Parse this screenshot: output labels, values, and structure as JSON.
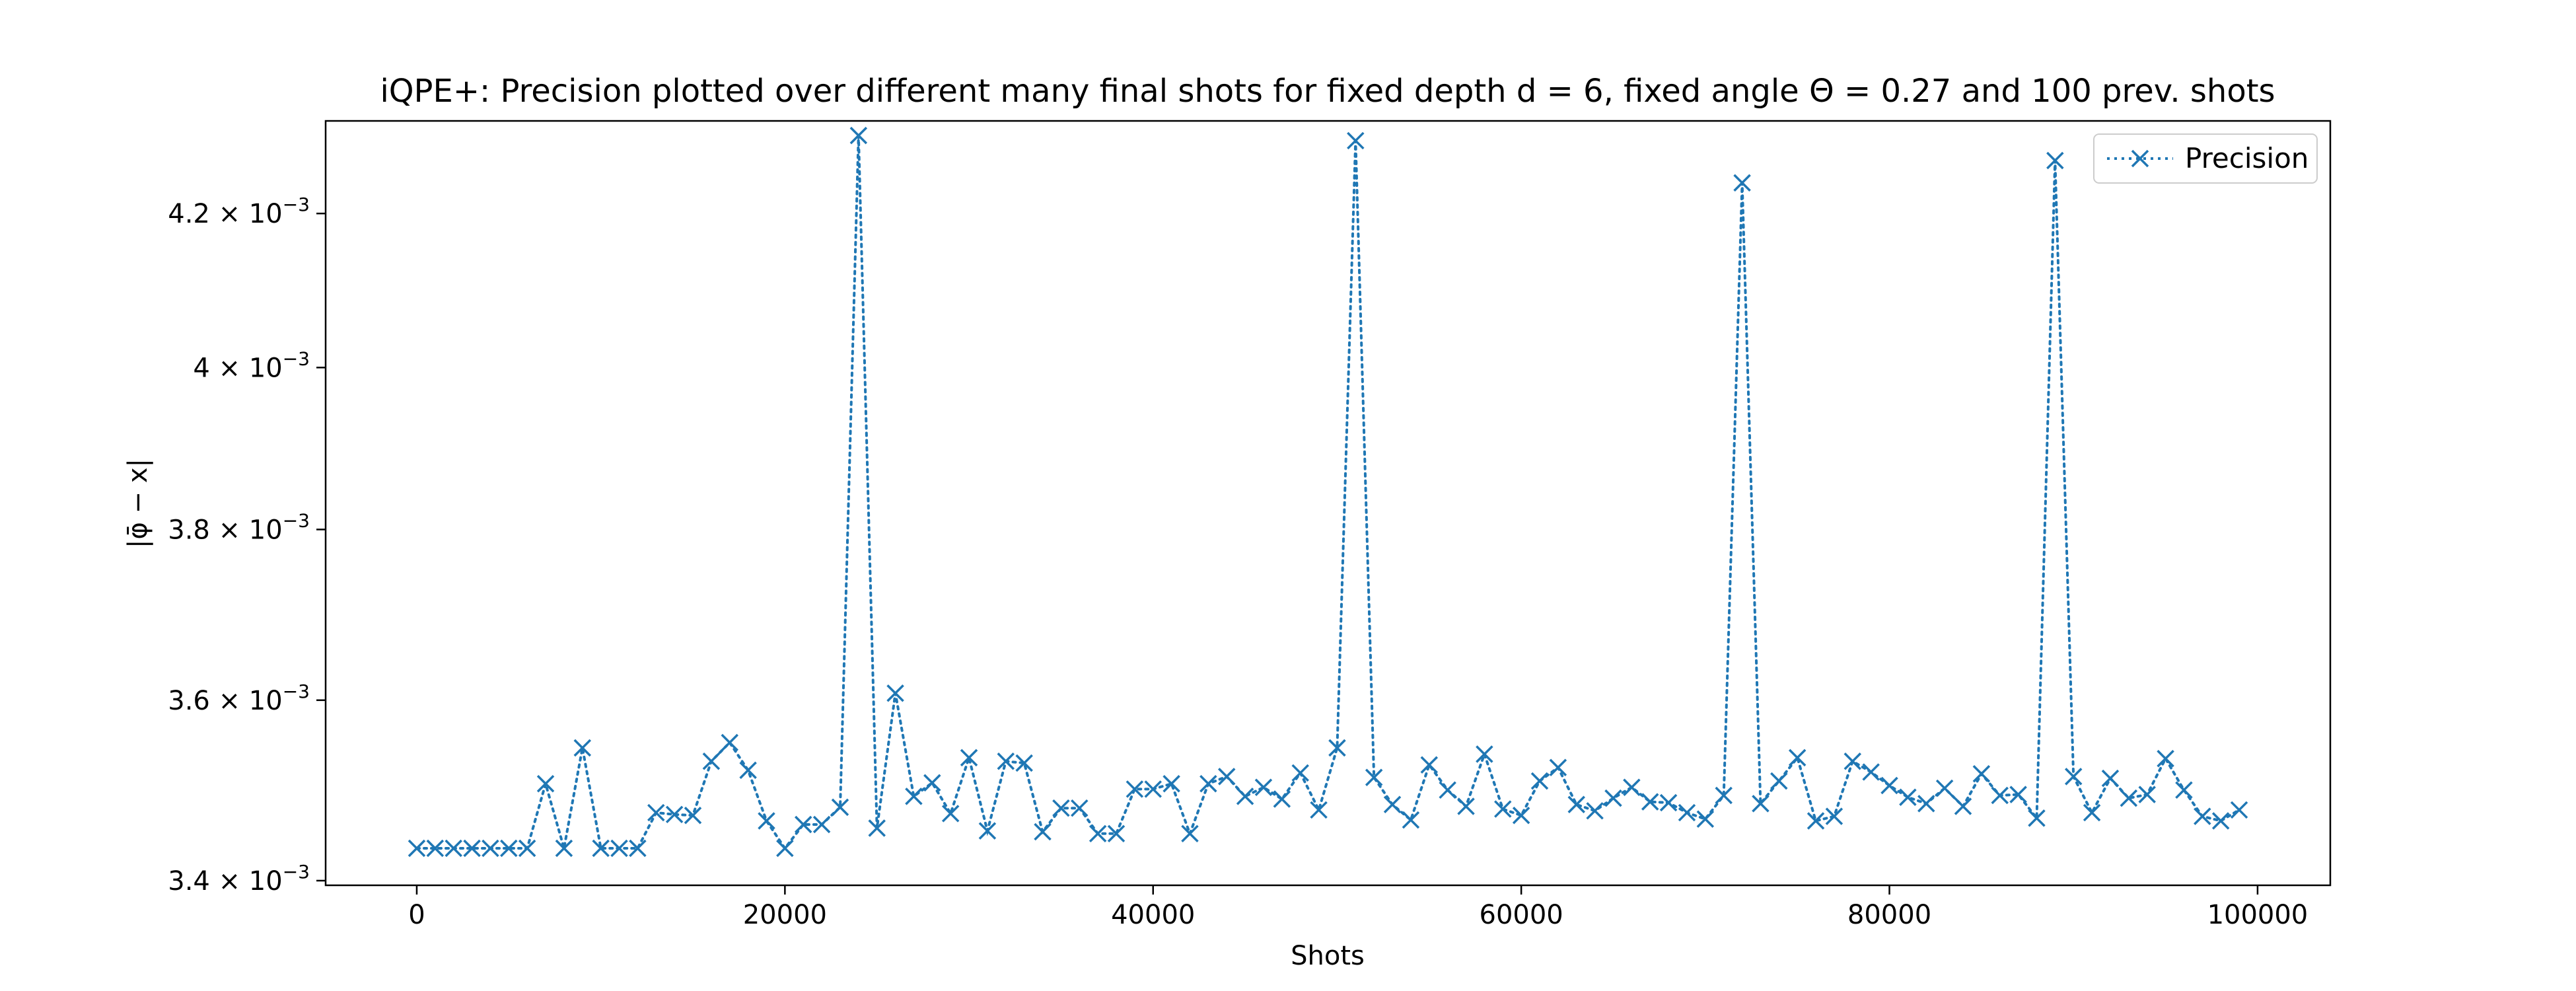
{
  "chart_data": {
    "type": "line",
    "title": "iQPE+: Precision plotted over different many final shots for fixed depth d = 6, fixed angle Θ = 0.27 and 100 prev. shots",
    "xlabel": "Shots",
    "ylabel": "|φ̄ − x|",
    "xlim": [
      -4950,
      103950
    ],
    "ylim": [
      0.003395,
      0.004325
    ],
    "x_ticks": [
      {
        "value": 0,
        "label": "0"
      },
      {
        "value": 20000,
        "label": "20000"
      },
      {
        "value": 40000,
        "label": "40000"
      },
      {
        "value": 60000,
        "label": "60000"
      },
      {
        "value": 80000,
        "label": "80000"
      },
      {
        "value": 100000,
        "label": "100000"
      }
    ],
    "y_ticks": [
      {
        "value": 0.0034,
        "mantissa": "3.4",
        "exp": "−3"
      },
      {
        "value": 0.0036,
        "mantissa": "3.6",
        "exp": "−3"
      },
      {
        "value": 0.0038,
        "mantissa": "3.8",
        "exp": "−3"
      },
      {
        "value": 0.004,
        "mantissa": "4",
        "exp": "−3"
      },
      {
        "value": 0.0042,
        "mantissa": "4.2",
        "exp": "−3"
      }
    ],
    "y_scale": "log",
    "grid": false,
    "legend_position": "top-right",
    "series": [
      {
        "name": "Precision",
        "color": "#1f77b4",
        "line_style": "dotted",
        "marker": "x",
        "x": [
          0,
          1000,
          2000,
          3000,
          4000,
          5000,
          6000,
          7000,
          8000,
          9000,
          10000,
          11000,
          12000,
          13000,
          14000,
          15000,
          16000,
          17000,
          18000,
          19000,
          20000,
          21000,
          22000,
          23000,
          24000,
          25000,
          26000,
          27000,
          28000,
          29000,
          30000,
          31000,
          32000,
          33000,
          34000,
          35000,
          36000,
          37000,
          38000,
          39000,
          40000,
          41000,
          42000,
          43000,
          44000,
          45000,
          46000,
          47000,
          48000,
          49000,
          50000,
          51000,
          52000,
          53000,
          54000,
          55000,
          56000,
          57000,
          58000,
          59000,
          60000,
          61000,
          62000,
          63000,
          64000,
          65000,
          66000,
          67000,
          68000,
          69000,
          70000,
          71000,
          72000,
          73000,
          74000,
          75000,
          76000,
          77000,
          78000,
          79000,
          80000,
          81000,
          82000,
          83000,
          84000,
          85000,
          86000,
          87000,
          88000,
          89000,
          90000,
          91000,
          92000,
          93000,
          94000,
          95000,
          96000,
          97000,
          98000,
          99000
        ],
        "y": [
          0.003435,
          0.003435,
          0.003435,
          0.003435,
          0.003435,
          0.003435,
          0.003435,
          0.003506,
          0.003435,
          0.003546,
          0.003435,
          0.003435,
          0.003435,
          0.003474,
          0.003472,
          0.003471,
          0.003531,
          0.003552,
          0.003521,
          0.003465,
          0.003435,
          0.003461,
          0.003461,
          0.00348,
          0.004305,
          0.003457,
          0.003608,
          0.003492,
          0.003507,
          0.003473,
          0.003535,
          0.003454,
          0.003531,
          0.003529,
          0.003453,
          0.003479,
          0.003479,
          0.003451,
          0.003451,
          0.0035,
          0.0035,
          0.003506,
          0.003451,
          0.003506,
          0.003514,
          0.003492,
          0.003502,
          0.003489,
          0.003518,
          0.003477,
          0.003546,
          0.004298,
          0.003513,
          0.003483,
          0.003466,
          0.003527,
          0.003499,
          0.003481,
          0.003539,
          0.003478,
          0.003471,
          0.003509,
          0.003524,
          0.003483,
          0.003476,
          0.00349,
          0.003502,
          0.003486,
          0.003485,
          0.003474,
          0.003467,
          0.003493,
          0.004241,
          0.003484,
          0.003509,
          0.003535,
          0.003465,
          0.00347,
          0.003531,
          0.003519,
          0.003504,
          0.003491,
          0.003484,
          0.003501,
          0.003481,
          0.003517,
          0.003493,
          0.003494,
          0.003468,
          0.004271,
          0.003514,
          0.003474,
          0.003512,
          0.00349,
          0.003494,
          0.003534,
          0.003499,
          0.00347,
          0.003465,
          0.003477
        ]
      }
    ]
  }
}
